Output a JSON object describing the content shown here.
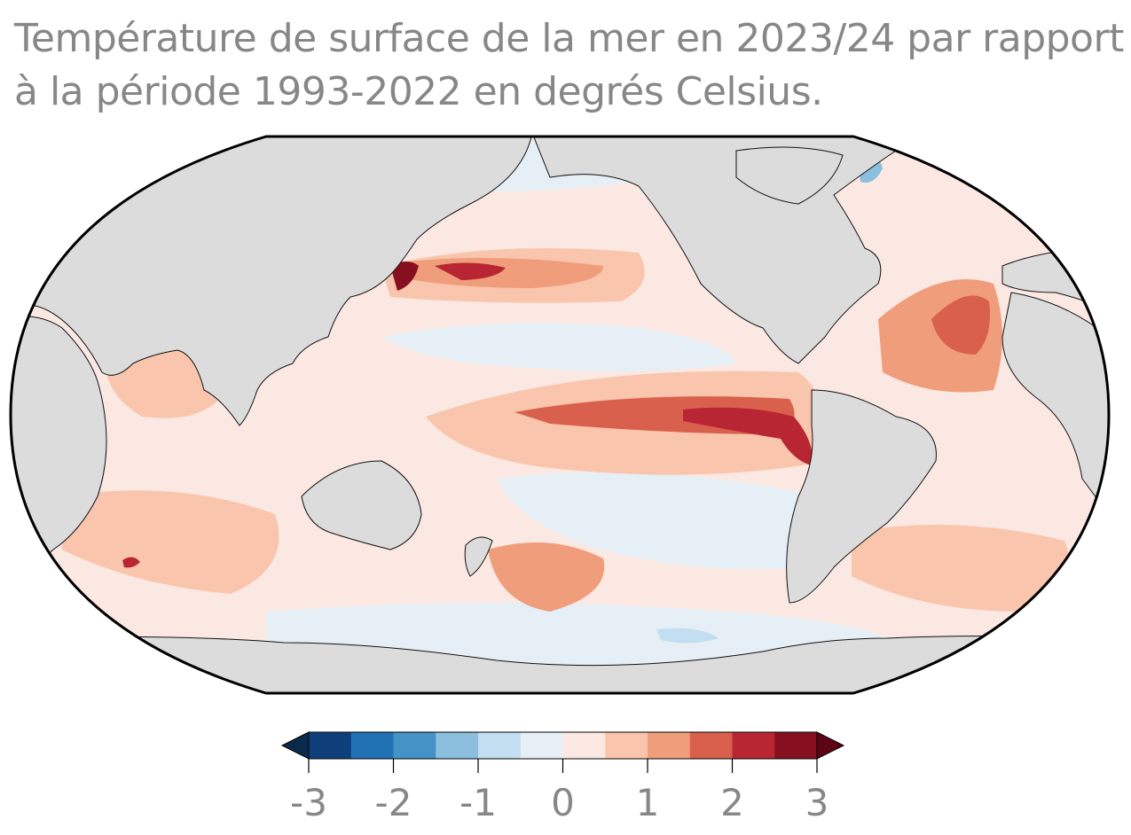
{
  "title_lines": [
    "Température de surface de la mer en 2023/24 par rapport",
    "à la période 1993-2022 en degrés Celsius."
  ],
  "colorbar": {
    "min": -3,
    "max": 3,
    "step": 0.5,
    "colors": [
      "#0e3f7a",
      "#2171b5",
      "#4393c7",
      "#8bbfdd",
      "#c2def0",
      "#e6eff6",
      "#fbe8e2",
      "#f9c5ad",
      "#f09d7c",
      "#d9604d",
      "#b92633",
      "#86101f"
    ],
    "under_color": "#0a2a4a",
    "over_color": "#5e0415",
    "ticks": [
      {
        "value": -3,
        "label": "-3"
      },
      {
        "value": -2,
        "label": "-2"
      },
      {
        "value": -1,
        "label": "-1"
      },
      {
        "value": 0,
        "label": "0"
      },
      {
        "value": 1,
        "label": "1"
      },
      {
        "value": 2,
        "label": "2"
      },
      {
        "value": 3,
        "label": "3"
      }
    ]
  },
  "map": {
    "projection": "Robinson, centred on the Pacific",
    "ocean_base_color": "#fbe8e2",
    "land_color": "#dcdcdc",
    "anomaly_regions": [
      {
        "name": "equatorial-pacific-el-nino",
        "anomaly": 1.2
      },
      {
        "name": "equatorial-pacific-el-nino-core",
        "anomaly": 1.8
      },
      {
        "name": "peru-coast-hotspot",
        "anomaly": 2.3
      },
      {
        "name": "kuroshio-extension",
        "anomaly": 1.6
      },
      {
        "name": "japan-coast-hotspot",
        "anomaly": 2.8
      },
      {
        "name": "north-atlantic-warm",
        "anomaly": 1.2
      },
      {
        "name": "north-atlantic-core",
        "anomaly": 1.7
      },
      {
        "name": "southern-ocean-cool-pacific",
        "anomaly": -0.3
      },
      {
        "name": "south-pacific-warm-patch",
        "anomaly": 1.4
      }
    ]
  }
}
